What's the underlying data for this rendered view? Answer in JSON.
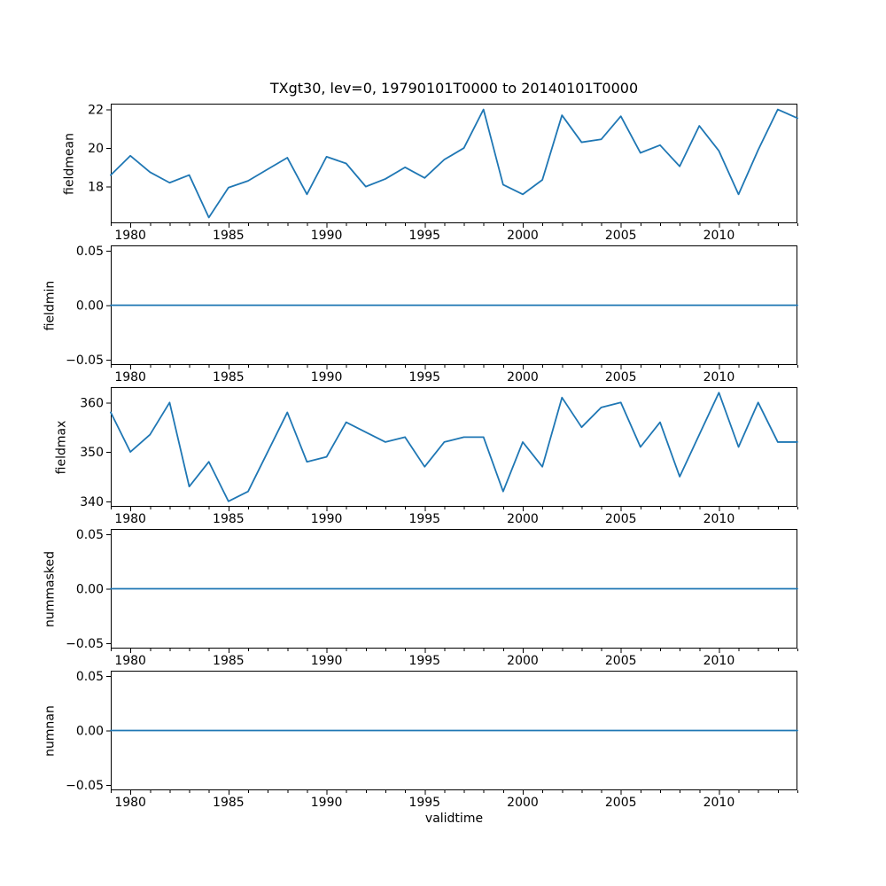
{
  "chart_data": {
    "type": "line",
    "title": "TXgt30, lev=0, 19790101T0000 to 20140101T0000",
    "xlabel": "validtime",
    "line_color": "#1f77b4",
    "axis_color": "#000000",
    "background": "#ffffff",
    "grid": false,
    "legend": "none",
    "xlim": [
      1979,
      2014
    ],
    "xticks": [
      1980,
      1985,
      1990,
      1995,
      2000,
      2005,
      2010
    ],
    "xtick_labels": [
      "1980",
      "1985",
      "1990",
      "1995",
      "2000",
      "2005",
      "2010"
    ],
    "minor_xtick_interval": 1,
    "x": [
      1979,
      1980,
      1981,
      1982,
      1983,
      1984,
      1985,
      1986,
      1987,
      1988,
      1989,
      1990,
      1991,
      1992,
      1993,
      1994,
      1995,
      1996,
      1997,
      1998,
      1999,
      2000,
      2001,
      2002,
      2003,
      2004,
      2005,
      2006,
      2007,
      2008,
      2009,
      2010,
      2011,
      2012,
      2013,
      2014
    ],
    "subplots": [
      {
        "ylabel": "fieldmean",
        "ylim": [
          16.1,
          22.3
        ],
        "yticks": [
          18,
          20,
          22
        ],
        "ytick_labels": [
          "18",
          "20",
          "22"
        ],
        "values": [
          18.6,
          19.6,
          18.75,
          18.2,
          18.6,
          16.4,
          17.95,
          18.3,
          18.9,
          19.5,
          17.6,
          19.55,
          19.2,
          18.0,
          18.4,
          19.0,
          18.45,
          19.4,
          20.0,
          22.0,
          18.1,
          17.6,
          18.35,
          21.7,
          20.3,
          20.45,
          21.65,
          19.75,
          20.15,
          19.05,
          21.15,
          19.85,
          17.6,
          19.9,
          22.0,
          21.55
        ]
      },
      {
        "ylabel": "fieldmin",
        "ylim": [
          -0.055,
          0.055
        ],
        "yticks": [
          -0.05,
          0.0,
          0.05
        ],
        "ytick_labels": [
          "−0.05",
          "0.00",
          "0.05"
        ],
        "values": [
          0,
          0,
          0,
          0,
          0,
          0,
          0,
          0,
          0,
          0,
          0,
          0,
          0,
          0,
          0,
          0,
          0,
          0,
          0,
          0,
          0,
          0,
          0,
          0,
          0,
          0,
          0,
          0,
          0,
          0,
          0,
          0,
          0,
          0,
          0,
          0
        ]
      },
      {
        "ylabel": "fieldmax",
        "ylim": [
          338.9,
          363.1
        ],
        "yticks": [
          340,
          350,
          360
        ],
        "ytick_labels": [
          "340",
          "350",
          "360"
        ],
        "values": [
          358,
          350,
          353.5,
          360,
          343,
          348,
          340,
          342,
          350,
          358,
          348,
          349,
          356,
          354,
          352,
          353,
          347,
          352,
          353,
          353,
          342,
          352,
          347,
          361,
          355,
          359,
          360,
          351,
          356,
          345,
          353.5,
          362,
          351,
          360,
          352,
          352
        ]
      },
      {
        "ylabel": "nummasked",
        "ylim": [
          -0.055,
          0.055
        ],
        "yticks": [
          -0.05,
          0.0,
          0.05
        ],
        "ytick_labels": [
          "−0.05",
          "0.00",
          "0.05"
        ],
        "values": [
          0,
          0,
          0,
          0,
          0,
          0,
          0,
          0,
          0,
          0,
          0,
          0,
          0,
          0,
          0,
          0,
          0,
          0,
          0,
          0,
          0,
          0,
          0,
          0,
          0,
          0,
          0,
          0,
          0,
          0,
          0,
          0,
          0,
          0,
          0,
          0
        ]
      },
      {
        "ylabel": "numnan",
        "ylim": [
          -0.055,
          0.055
        ],
        "yticks": [
          -0.05,
          0.0,
          0.05
        ],
        "ytick_labels": [
          "−0.05",
          "0.00",
          "0.05"
        ],
        "values": [
          0,
          0,
          0,
          0,
          0,
          0,
          0,
          0,
          0,
          0,
          0,
          0,
          0,
          0,
          0,
          0,
          0,
          0,
          0,
          0,
          0,
          0,
          0,
          0,
          0,
          0,
          0,
          0,
          0,
          0,
          0,
          0,
          0,
          0,
          0,
          0
        ]
      }
    ]
  }
}
